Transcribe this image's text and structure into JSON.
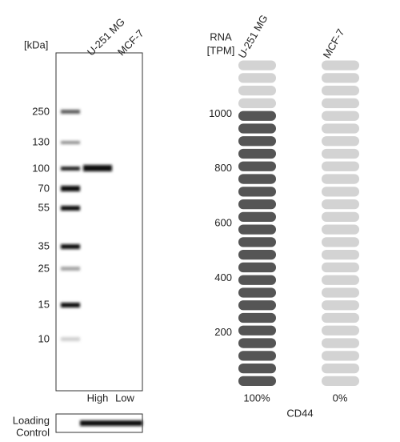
{
  "blot": {
    "kda_label": "[kDa]",
    "lanes": [
      "U-251 MG",
      "MCF-7"
    ],
    "markers": [
      250,
      130,
      100,
      70,
      55,
      35,
      25,
      15,
      10
    ],
    "lane_levels": [
      "High",
      "Low"
    ],
    "loading_control": [
      "Loading",
      "Control"
    ]
  },
  "rna": {
    "unit_label": [
      "RNA",
      "[TPM]"
    ],
    "ylim": [
      0,
      1200
    ],
    "yticks": [
      200,
      400,
      600,
      800,
      1000
    ],
    "samples": [
      {
        "name": "U-251 MG",
        "value": 1000,
        "percent_label": "100%"
      },
      {
        "name": "MCF-7",
        "value": 0,
        "percent_label": "0%"
      }
    ],
    "gene": "CD44"
  }
}
